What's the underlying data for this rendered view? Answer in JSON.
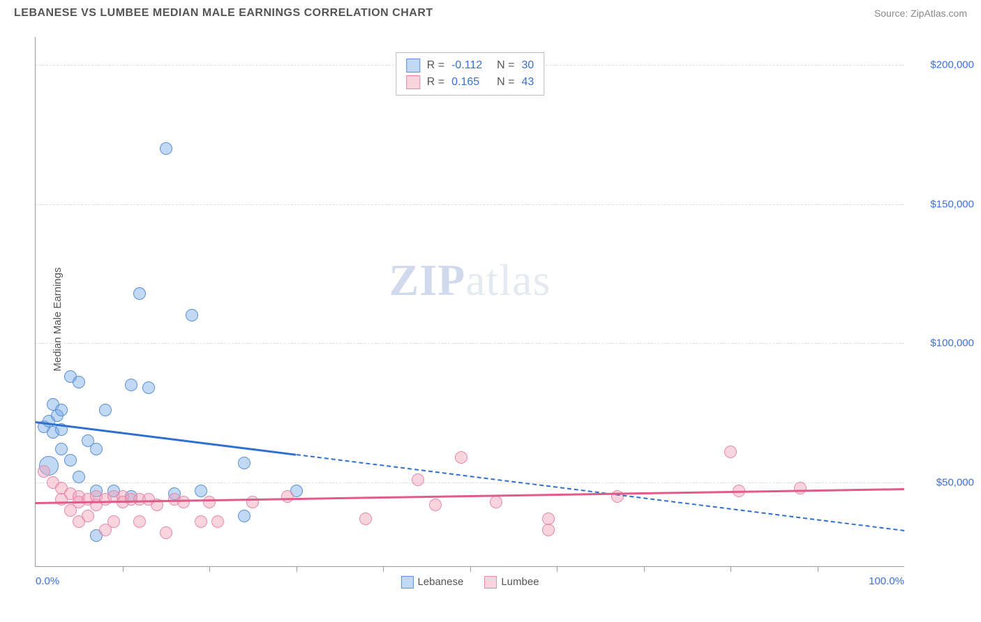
{
  "header": {
    "title": "LEBANESE VS LUMBEE MEDIAN MALE EARNINGS CORRELATION CHART",
    "source": "Source: ZipAtlas.com"
  },
  "watermark": {
    "zip": "ZIP",
    "atlas": "atlas"
  },
  "chart": {
    "type": "scatter",
    "y_axis_label": "Median Male Earnings",
    "x_range": [
      0,
      100
    ],
    "y_range": [
      20000,
      210000
    ],
    "y_ticks": [
      {
        "value": 50000,
        "label": "$50,000"
      },
      {
        "value": 100000,
        "label": "$100,000"
      },
      {
        "value": 150000,
        "label": "$150,000"
      },
      {
        "value": 200000,
        "label": "$200,000"
      }
    ],
    "x_ticks": [
      10,
      20,
      30,
      40,
      50,
      60,
      70,
      80,
      90
    ],
    "x_tick_labels": [
      {
        "value": 0,
        "label": "0.0%"
      },
      {
        "value": 100,
        "label": "100.0%"
      }
    ],
    "grid_color": "#dddddd",
    "axis_color": "#999999",
    "background_color": "#ffffff",
    "series": [
      {
        "name": "Lebanese",
        "fill_color": "rgba(120,170,230,0.45)",
        "stroke_color": "#5a8fd6",
        "line_color": "#2f6fd0",
        "r_value": "-0.112",
        "n_value": "30",
        "trend": {
          "x1": 0,
          "y1": 72000,
          "x_solid_end": 30,
          "x2": 100,
          "y2": 33000
        },
        "points": [
          {
            "x": 1.5,
            "y": 56000,
            "r": 14
          },
          {
            "x": 1,
            "y": 70000,
            "r": 9
          },
          {
            "x": 1.5,
            "y": 72000,
            "r": 9
          },
          {
            "x": 2,
            "y": 68000,
            "r": 9
          },
          {
            "x": 2.5,
            "y": 74000,
            "r": 9
          },
          {
            "x": 3,
            "y": 69000,
            "r": 9
          },
          {
            "x": 2,
            "y": 78000,
            "r": 9
          },
          {
            "x": 3,
            "y": 76000,
            "r": 9
          },
          {
            "x": 4,
            "y": 88000,
            "r": 9
          },
          {
            "x": 5,
            "y": 86000,
            "r": 9
          },
          {
            "x": 3,
            "y": 62000,
            "r": 9
          },
          {
            "x": 4,
            "y": 58000,
            "r": 9
          },
          {
            "x": 5,
            "y": 52000,
            "r": 9
          },
          {
            "x": 6,
            "y": 65000,
            "r": 9
          },
          {
            "x": 7,
            "y": 62000,
            "r": 9
          },
          {
            "x": 7,
            "y": 47000,
            "r": 9
          },
          {
            "x": 7,
            "y": 31000,
            "r": 9
          },
          {
            "x": 8,
            "y": 76000,
            "r": 9
          },
          {
            "x": 9,
            "y": 47000,
            "r": 9
          },
          {
            "x": 11,
            "y": 85000,
            "r": 9
          },
          {
            "x": 11,
            "y": 45000,
            "r": 9
          },
          {
            "x": 12,
            "y": 118000,
            "r": 9
          },
          {
            "x": 13,
            "y": 84000,
            "r": 9
          },
          {
            "x": 15,
            "y": 170000,
            "r": 9
          },
          {
            "x": 16,
            "y": 46000,
            "r": 9
          },
          {
            "x": 18,
            "y": 110000,
            "r": 9
          },
          {
            "x": 19,
            "y": 47000,
            "r": 9
          },
          {
            "x": 24,
            "y": 57000,
            "r": 9
          },
          {
            "x": 24,
            "y": 38000,
            "r": 9
          },
          {
            "x": 30,
            "y": 47000,
            "r": 9
          }
        ]
      },
      {
        "name": "Lumbee",
        "fill_color": "rgba(240,160,185,0.45)",
        "stroke_color": "#e48aa8",
        "line_color": "#e05a8a",
        "r_value": "0.165",
        "n_value": "43",
        "trend": {
          "x1": 0,
          "y1": 43000,
          "x_solid_end": 100,
          "x2": 100,
          "y2": 48000
        },
        "points": [
          {
            "x": 1,
            "y": 54000,
            "r": 9
          },
          {
            "x": 2,
            "y": 50000,
            "r": 9
          },
          {
            "x": 3,
            "y": 48000,
            "r": 9
          },
          {
            "x": 3,
            "y": 44000,
            "r": 9
          },
          {
            "x": 4,
            "y": 46000,
            "r": 9
          },
          {
            "x": 4,
            "y": 40000,
            "r": 9
          },
          {
            "x": 5,
            "y": 45000,
            "r": 9
          },
          {
            "x": 5,
            "y": 43000,
            "r": 9
          },
          {
            "x": 5,
            "y": 36000,
            "r": 9
          },
          {
            "x": 6,
            "y": 44000,
            "r": 9
          },
          {
            "x": 6,
            "y": 38000,
            "r": 9
          },
          {
            "x": 7,
            "y": 45000,
            "r": 9
          },
          {
            "x": 7,
            "y": 42000,
            "r": 9
          },
          {
            "x": 8,
            "y": 44000,
            "r": 9
          },
          {
            "x": 8,
            "y": 33000,
            "r": 9
          },
          {
            "x": 9,
            "y": 45000,
            "r": 9
          },
          {
            "x": 9,
            "y": 36000,
            "r": 9
          },
          {
            "x": 10,
            "y": 45000,
            "r": 9
          },
          {
            "x": 10,
            "y": 43000,
            "r": 9
          },
          {
            "x": 11,
            "y": 44000,
            "r": 9
          },
          {
            "x": 12,
            "y": 44000,
            "r": 9
          },
          {
            "x": 12,
            "y": 36000,
            "r": 9
          },
          {
            "x": 13,
            "y": 44000,
            "r": 9
          },
          {
            "x": 14,
            "y": 42000,
            "r": 9
          },
          {
            "x": 15,
            "y": 32000,
            "r": 9
          },
          {
            "x": 16,
            "y": 44000,
            "r": 9
          },
          {
            "x": 17,
            "y": 43000,
            "r": 9
          },
          {
            "x": 19,
            "y": 36000,
            "r": 9
          },
          {
            "x": 20,
            "y": 43000,
            "r": 9
          },
          {
            "x": 21,
            "y": 36000,
            "r": 9
          },
          {
            "x": 25,
            "y": 43000,
            "r": 9
          },
          {
            "x": 29,
            "y": 45000,
            "r": 9
          },
          {
            "x": 38,
            "y": 37000,
            "r": 9
          },
          {
            "x": 44,
            "y": 51000,
            "r": 9
          },
          {
            "x": 46,
            "y": 42000,
            "r": 9
          },
          {
            "x": 49,
            "y": 59000,
            "r": 9
          },
          {
            "x": 53,
            "y": 43000,
            "r": 9
          },
          {
            "x": 59,
            "y": 37000,
            "r": 9
          },
          {
            "x": 59,
            "y": 33000,
            "r": 9
          },
          {
            "x": 67,
            "y": 45000,
            "r": 9
          },
          {
            "x": 80,
            "y": 61000,
            "r": 9
          },
          {
            "x": 81,
            "y": 47000,
            "r": 9
          },
          {
            "x": 88,
            "y": 48000,
            "r": 9
          }
        ]
      }
    ],
    "r_legend_labels": {
      "r": "R =",
      "n": "N ="
    },
    "bottom_legend": [
      {
        "label": "Lebanese",
        "series": 0
      },
      {
        "label": "Lumbee",
        "series": 1
      }
    ]
  }
}
